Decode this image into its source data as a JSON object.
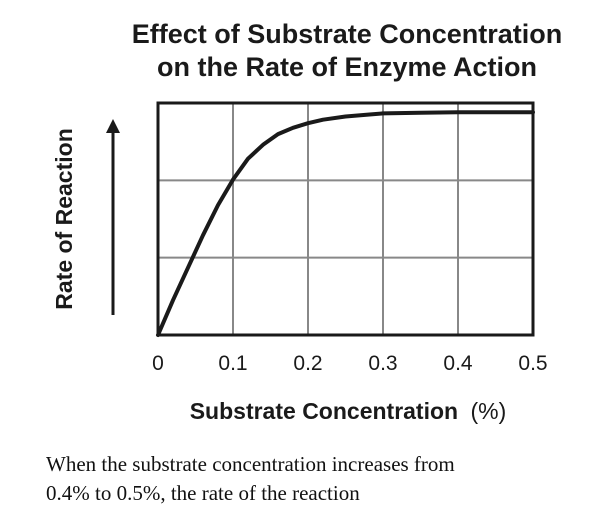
{
  "chart_data": {
    "type": "line",
    "title": [
      "Effect of Substrate Concentration",
      "on the Rate of Enzyme Action"
    ],
    "xlabel": "Substrate Concentration",
    "xlabel_unit": "(%)",
    "ylabel": "Rate of Reaction",
    "x_ticks": [
      "0",
      "0.1",
      "0.2",
      "0.3",
      "0.4",
      "0.5"
    ],
    "xlim": [
      0,
      0.5
    ],
    "ylim": [
      0,
      1
    ],
    "y_ticks_labeled": false,
    "grid": true,
    "y_axis_arrow": true,
    "series": [
      {
        "name": "Rate of Reaction",
        "x": [
          0,
          0.02,
          0.04,
          0.06,
          0.08,
          0.1,
          0.12,
          0.14,
          0.16,
          0.18,
          0.2,
          0.22,
          0.25,
          0.28,
          0.3,
          0.35,
          0.4,
          0.45,
          0.5
        ],
        "y": [
          0,
          0.15,
          0.29,
          0.43,
          0.56,
          0.67,
          0.76,
          0.82,
          0.866,
          0.893,
          0.913,
          0.928,
          0.942,
          0.95,
          0.955,
          0.958,
          0.96,
          0.96,
          0.96
        ]
      }
    ]
  },
  "question": {
    "line1": "When the substrate concentration increases from",
    "line2": "0.4% to 0.5%, the rate of the reaction"
  }
}
